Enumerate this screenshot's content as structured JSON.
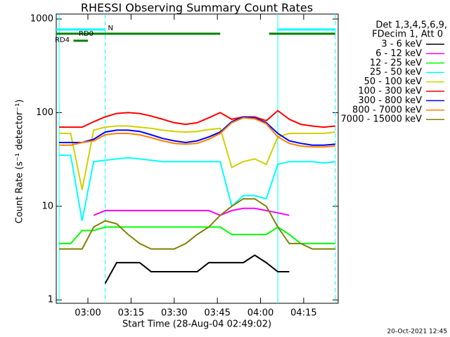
{
  "chart_data": {
    "type": "line",
    "title": "RHESSI Observing Summary Count Rates",
    "x_label": "Start Time (28-Aug-04 02:49:02)",
    "y_label": "Count Rate (s⁻¹ detector⁻¹)",
    "legend_title": [
      "Det 1,3,4,5,6,9,",
      "FDecim 1, Att 0"
    ],
    "footer": "20-Oct-2021 12:45",
    "log_y": true,
    "legend_position": "right",
    "xlim": [
      "02:49",
      "04:27"
    ],
    "xticks": [
      "03:00",
      "03:15",
      "03:30",
      "03:45",
      "04:00",
      "04:15"
    ],
    "ylim": [
      0.92,
      1130
    ],
    "yticks": [
      1,
      10,
      100,
      1000
    ],
    "x": [
      "02:50",
      "02:54",
      "02:58",
      "03:02",
      "03:06",
      "03:10",
      "03:14",
      "03:18",
      "03:22",
      "03:26",
      "03:30",
      "03:34",
      "03:38",
      "03:42",
      "03:46",
      "03:50",
      "03:54",
      "03:58",
      "04:02",
      "04:06",
      "04:10",
      "04:14",
      "04:18",
      "04:22",
      "04:26"
    ],
    "series": [
      {
        "name": "3 - 6 keV",
        "color": "#000000",
        "values": [
          null,
          null,
          null,
          null,
          1.5,
          2.5,
          2.5,
          2.5,
          2,
          2,
          2,
          2,
          2,
          2.5,
          2.5,
          2.5,
          2.5,
          3,
          2.5,
          2,
          2,
          null,
          null,
          null,
          null
        ]
      },
      {
        "name": "6 - 12 keV",
        "color": "#ff00ff",
        "values": [
          null,
          null,
          null,
          8,
          9,
          9,
          9,
          9,
          9,
          9,
          9,
          9,
          9,
          9,
          8,
          9,
          9.5,
          9.5,
          9,
          8.5,
          8,
          null,
          null,
          null,
          null
        ]
      },
      {
        "name": "12 - 25 keV",
        "color": "#00ff00",
        "values": [
          4,
          4,
          5.5,
          5.5,
          6,
          6,
          6,
          6,
          6,
          6,
          6,
          6,
          6,
          6,
          6,
          5,
          5,
          5,
          5,
          6,
          5,
          4,
          4,
          4,
          4
        ]
      },
      {
        "name": "25 - 50 keV",
        "color": "#00ffff",
        "values": [
          35,
          35,
          7,
          30,
          31,
          32,
          33,
          32,
          31,
          30,
          30,
          30,
          30,
          30,
          30,
          10,
          13,
          13,
          12,
          28,
          30,
          30,
          30,
          29,
          30
        ]
      },
      {
        "name": "50 - 100 keV",
        "color": "#d0d000",
        "values": [
          60,
          60,
          15,
          65,
          70,
          72,
          72,
          70,
          68,
          65,
          63,
          62,
          63,
          66,
          68,
          26,
          30,
          32,
          28,
          55,
          60,
          60,
          60,
          60,
          62
        ]
      },
      {
        "name": "100 - 300 keV",
        "color": "#ff0000",
        "values": [
          70,
          70,
          70,
          80,
          90,
          98,
          100,
          98,
          92,
          85,
          78,
          75,
          78,
          88,
          100,
          85,
          90,
          90,
          82,
          105,
          85,
          75,
          72,
          70,
          72
        ]
      },
      {
        "name": "300 - 800 keV",
        "color": "#0000ff",
        "values": [
          48,
          48,
          48,
          52,
          62,
          65,
          65,
          63,
          58,
          53,
          50,
          48,
          50,
          55,
          62,
          80,
          90,
          88,
          78,
          60,
          50,
          47,
          45,
          45,
          46
        ]
      },
      {
        "name": "800 - 7000 keV",
        "color": "#ff8000",
        "values": [
          45,
          45,
          48,
          50,
          58,
          60,
          60,
          58,
          54,
          50,
          47,
          46,
          47,
          52,
          60,
          78,
          88,
          86,
          76,
          55,
          47,
          44,
          43,
          43,
          44
        ]
      },
      {
        "name": "7000 - 15000 keV",
        "color": "#808000",
        "values": [
          3.5,
          3.5,
          3.5,
          6,
          7,
          6.5,
          5,
          4,
          3.5,
          3.5,
          3.5,
          4,
          5,
          6,
          8,
          10,
          12,
          12,
          10,
          6,
          4,
          4,
          3.5,
          3.5,
          3.5
        ]
      }
    ],
    "flags": [
      {
        "label": "N",
        "color": "#00ffff",
        "ranges": [
          [
            "02:49",
            "03:06"
          ],
          [
            "04:06",
            "04:26"
          ]
        ]
      },
      {
        "label": "RD0",
        "color": "#008000",
        "ranges": [
          [
            "02:49",
            "03:46"
          ],
          [
            "04:03",
            "04:26"
          ]
        ]
      },
      {
        "label": "RD4",
        "color": "#008000",
        "ranges": [
          [
            "02:55",
            "03:00"
          ]
        ]
      }
    ],
    "vlines": {
      "color": "#00ffff",
      "lines": [
        {
          "x": "02:50",
          "dashed": false
        },
        {
          "x": "03:06",
          "dashed": true
        },
        {
          "x": "04:06",
          "dashed": false
        },
        {
          "x": "04:26",
          "dashed": true
        }
      ]
    }
  }
}
